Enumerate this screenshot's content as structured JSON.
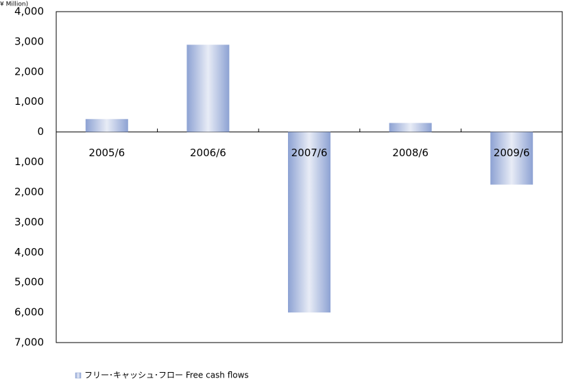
{
  "chart_data": {
    "type": "bar",
    "y_label": "¥ Million)",
    "categories": [
      "2005/6",
      "2006/6",
      "2007/6",
      "2008/6",
      "2009/6"
    ],
    "series": [
      {
        "name": "フリー･キャッシュ･フロー Free cash flows",
        "color": "#8da2d3",
        "values": [
          430,
          2900,
          -6000,
          300,
          -1750
        ]
      }
    ],
    "ylim": [
      -7000,
      4000
    ],
    "yticks": [
      {
        "value": -7000,
        "label": "7,000"
      },
      {
        "value": -6000,
        "label": "6,000"
      },
      {
        "value": -5000,
        "label": "5,000"
      },
      {
        "value": -4000,
        "label": "4,000"
      },
      {
        "value": -3000,
        "label": "3,000"
      },
      {
        "value": -2000,
        "label": "2,000"
      },
      {
        "value": -1000,
        "label": "1,000"
      },
      0,
      {
        "value": 1000,
        "label": "1,000"
      },
      {
        "value": 2000,
        "label": "2,000"
      },
      {
        "value": 3000,
        "label": "3,000"
      },
      {
        "value": 4000,
        "label": "4,000"
      }
    ],
    "grid": false,
    "legend": "bottom"
  }
}
